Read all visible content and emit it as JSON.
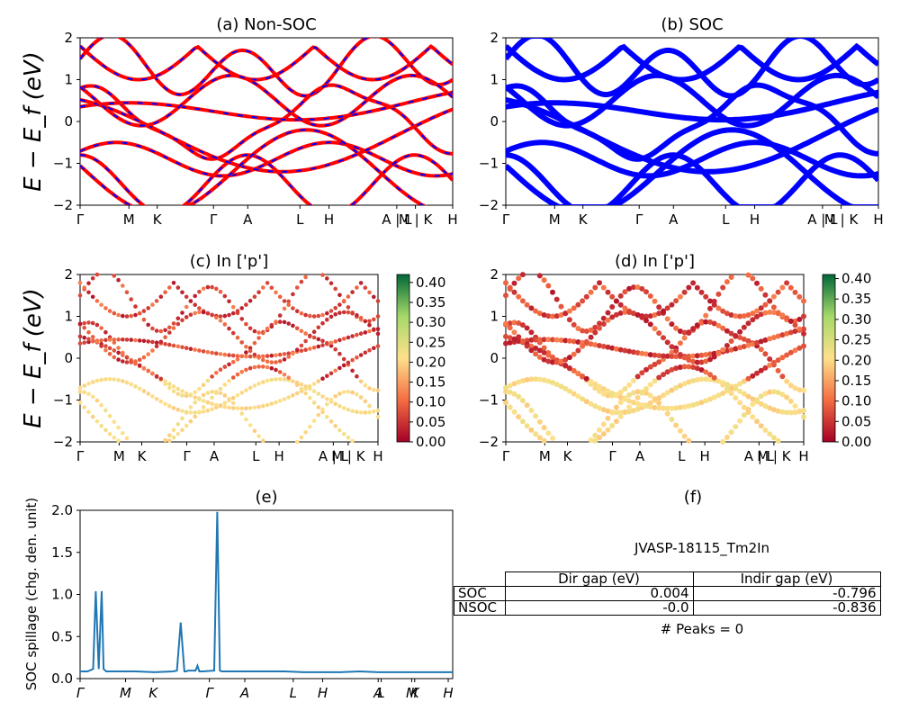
{
  "chart_data": [
    {
      "type": "line",
      "panel": "a",
      "title": "(a) Non-SOC",
      "ylabel": "E − E_f (eV)",
      "ylim": [
        -2,
        2
      ],
      "yticks": [
        "2",
        "1",
        "0",
        "−1",
        "−2"
      ],
      "kpath_labels": [
        "Γ",
        "M",
        "K",
        "Γ",
        "A",
        "L",
        "H",
        "A | L",
        "M | K",
        "H"
      ],
      "series": [
        {
          "color": "#ff0000",
          "style": "solid"
        },
        {
          "color": "#0000ff",
          "style": "dashed"
        }
      ]
    },
    {
      "type": "line",
      "panel": "b",
      "title": "(b) SOC",
      "ylim": [
        -2,
        2
      ],
      "yticks": [
        "2",
        "1",
        "0",
        "−1",
        "−2"
      ],
      "kpath_labels": [
        "Γ",
        "M",
        "K",
        "Γ",
        "A",
        "L",
        "H",
        "A | L",
        "M | K",
        "H"
      ],
      "series": [
        {
          "color": "#0000ff",
          "style": "solid"
        }
      ]
    },
    {
      "type": "scatter",
      "panel": "c",
      "title": "(c)  In ['p']",
      "ylabel": "E − E_f (eV)",
      "ylim": [
        -2,
        2
      ],
      "yticks": [
        "2",
        "1",
        "0",
        "−1",
        "−2"
      ],
      "kpath_labels": [
        "Γ",
        "M",
        "K",
        "Γ",
        "A",
        "L",
        "H",
        "A | L",
        "M | K",
        "H"
      ],
      "colorbar": {
        "ticks": [
          "0.40",
          "0.35",
          "0.30",
          "0.25",
          "0.20",
          "0.15",
          "0.10",
          "0.05",
          "0.00"
        ],
        "range": [
          0,
          0.42
        ],
        "cmap": "RdYlGn"
      }
    },
    {
      "type": "scatter",
      "panel": "d",
      "title": "(d) In ['p']",
      "ylim": [
        -2,
        2
      ],
      "yticks": [
        "2",
        "1",
        "0",
        "−1",
        "−2"
      ],
      "kpath_labels": [
        "Γ",
        "M",
        "K",
        "Γ",
        "A",
        "L",
        "H",
        "A | L",
        "M | K",
        "H"
      ],
      "colorbar": {
        "ticks": [
          "0.40",
          "0.35",
          "0.30",
          "0.25",
          "0.20",
          "0.15",
          "0.10",
          "0.05",
          "0.00"
        ],
        "range": [
          0,
          0.41
        ],
        "cmap": "RdYlGn"
      }
    },
    {
      "type": "line",
      "panel": "e",
      "title": "(e)",
      "ylabel": "SOC spillage (chg. den. unit)",
      "ylim": [
        0,
        2.1
      ],
      "yticks": [
        "2.0",
        "1.5",
        "1.0",
        "0.5",
        "0.0"
      ],
      "kpath_labels": [
        "Γ",
        "M",
        "K",
        "Γ",
        "A",
        "L",
        "H",
        "A",
        "L",
        "M",
        "K",
        "H"
      ],
      "x": [
        0,
        0.02,
        0.035,
        0.042,
        0.05,
        0.058,
        0.063,
        0.07,
        0.1,
        0.15,
        0.2,
        0.25,
        0.26,
        0.27,
        0.275,
        0.28,
        0.285,
        0.29,
        0.31,
        0.315,
        0.32,
        0.325,
        0.33,
        0.36,
        0.368,
        0.375,
        0.38,
        0.4,
        0.5,
        0.55,
        0.6,
        0.7,
        0.75,
        0.8,
        0.9,
        1.0
      ],
      "values": [
        0.09,
        0.09,
        0.12,
        1.09,
        0.12,
        1.09,
        0.12,
        0.09,
        0.09,
        0.09,
        0.08,
        0.09,
        0.1,
        0.7,
        0.38,
        0.09,
        0.09,
        0.1,
        0.1,
        0.16,
        0.09,
        0.09,
        0.09,
        0.1,
        2.08,
        0.1,
        0.09,
        0.09,
        0.09,
        0.09,
        0.08,
        0.08,
        0.09,
        0.08,
        0.08,
        0.08
      ],
      "color": "#1f77b4"
    }
  ],
  "panel_f": {
    "title": "(f)",
    "id": "JVASP-18115_Tm2In",
    "headers": [
      "Dir gap (eV)",
      "Indir gap (eV)"
    ],
    "rows": [
      {
        "label": "SOC",
        "dir": "0.004",
        "indir": "-0.796"
      },
      {
        "label": "NSOC",
        "dir": "-0.0",
        "indir": "-0.836"
      }
    ],
    "peaks": "# Peaks = 0"
  }
}
